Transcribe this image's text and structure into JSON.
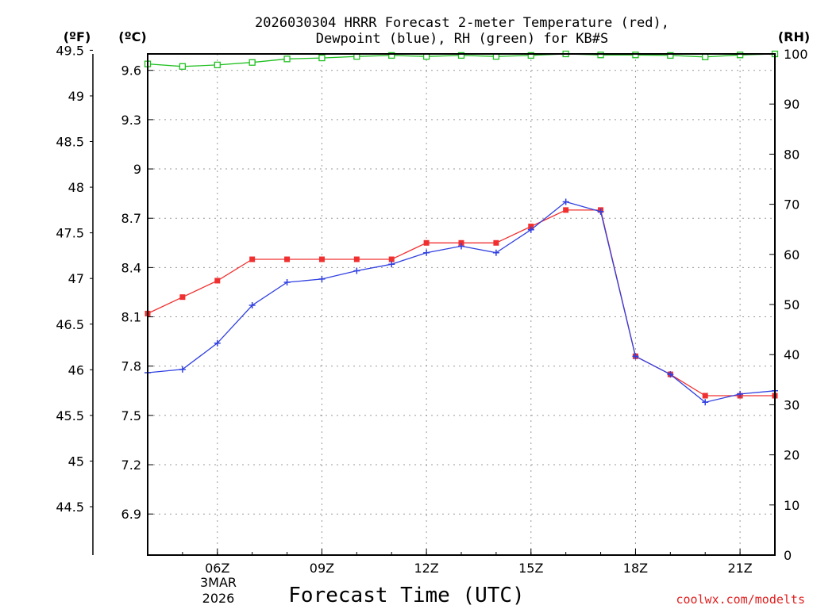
{
  "chart_data": {
    "type": "line",
    "title_line1": "2026030304 HRRR Forecast 2-meter Temperature (red),",
    "title_line2": "Dewpoint (blue), RH (green) for KB#S",
    "unit_f": "(ºF)",
    "unit_c": "(ºC)",
    "unit_rh": "(RH)",
    "xlabel": "Forecast Time (UTC)",
    "date_line1": "3MAR",
    "date_line2": "2026",
    "credit": "coolwx.com/modelts",
    "x_hours": [
      4,
      5,
      6,
      7,
      8,
      9,
      10,
      11,
      12,
      13,
      14,
      15,
      16,
      17,
      18,
      19,
      20,
      21,
      22
    ],
    "xlim": [
      4,
      22
    ],
    "x_ticks": [
      {
        "hour": 6,
        "label": "06Z"
      },
      {
        "hour": 9,
        "label": "09Z"
      },
      {
        "hour": 12,
        "label": "12Z"
      },
      {
        "hour": 15,
        "label": "15Z"
      },
      {
        "hour": 18,
        "label": "18Z"
      },
      {
        "hour": 21,
        "label": "21Z"
      }
    ],
    "celsius_axis": {
      "range": [
        6.65,
        9.7
      ],
      "ticks": [
        6.9,
        7.2,
        7.5,
        7.8,
        8.1,
        8.4,
        8.7,
        9,
        9.3,
        9.6
      ],
      "labels": [
        "6.9",
        "7.2",
        "7.5",
        "7.8",
        "8.1",
        "8.4",
        "8.7",
        "9",
        "9.3",
        "9.6"
      ]
    },
    "fahrenheit_axis": {
      "ticks": [
        44.5,
        45,
        45.5,
        46,
        46.5,
        47,
        47.5,
        48,
        48.5,
        49,
        49.5
      ],
      "labels": [
        "44.5",
        "45",
        "45.5",
        "46",
        "46.5",
        "47",
        "47.5",
        "48",
        "48.5",
        "49",
        "49.5"
      ]
    },
    "rh_axis": {
      "range": [
        0,
        100
      ],
      "ticks": [
        0,
        10,
        20,
        30,
        40,
        50,
        60,
        70,
        80,
        90,
        100
      ],
      "labels": [
        "0",
        "10",
        "20",
        "30",
        "40",
        "50",
        "60",
        "70",
        "80",
        "90",
        "100"
      ]
    },
    "series": [
      {
        "name": "Temperature",
        "color": "#f03030",
        "marker": "filled-square",
        "axis": "celsius",
        "values": [
          8.12,
          8.22,
          8.32,
          8.45,
          8.45,
          8.45,
          8.45,
          8.45,
          8.55,
          8.55,
          8.55,
          8.65,
          8.75,
          8.75,
          7.86,
          7.75,
          7.62,
          7.62,
          7.62
        ]
      },
      {
        "name": "Dewpoint",
        "color": "#3040e0",
        "marker": "plus",
        "axis": "celsius",
        "values": [
          7.76,
          7.78,
          7.94,
          8.17,
          8.31,
          8.33,
          8.38,
          8.42,
          8.49,
          8.53,
          8.49,
          8.63,
          8.8,
          8.74,
          7.86,
          7.75,
          7.58,
          7.63,
          7.65
        ]
      },
      {
        "name": "RH",
        "color": "#20c020",
        "marker": "open-square",
        "axis": "rh",
        "values": [
          98,
          97.5,
          97.8,
          98.3,
          99,
          99.2,
          99.5,
          99.7,
          99.5,
          99.7,
          99.5,
          99.7,
          100,
          99.8,
          99.8,
          99.7,
          99.4,
          99.8,
          100
        ]
      }
    ],
    "colors": {
      "temperature": "#f03030",
      "dewpoint": "#3040e0",
      "rh": "#20c020",
      "credit": "#e02020"
    }
  }
}
